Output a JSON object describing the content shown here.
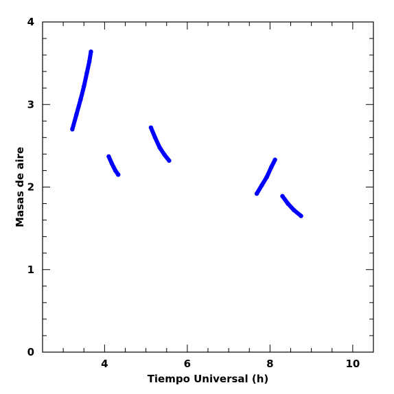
{
  "chart_data": {
    "type": "scatter",
    "title": "",
    "xlabel": "Tiempo Universal (h)",
    "ylabel": "Masas de aire",
    "xlim": [
      2.5,
      10.5
    ],
    "ylim": [
      0,
      4
    ],
    "x_ticks": [
      4,
      6,
      8,
      10
    ],
    "x_tick_labels": [
      "4",
      "6",
      "8",
      "10"
    ],
    "y_ticks": [
      0,
      1,
      2,
      3,
      4
    ],
    "y_tick_labels": [
      "0",
      "1",
      "2",
      "3",
      "4"
    ],
    "x_minor_step": 0.5,
    "y_minor_step": 0.2,
    "grid": false,
    "marker_color": "#0000ff",
    "series": [
      {
        "points": [
          [
            3.22,
            2.7
          ],
          [
            3.32,
            2.88
          ],
          [
            3.42,
            3.06
          ],
          [
            3.5,
            3.22
          ],
          [
            3.57,
            3.38
          ],
          [
            3.63,
            3.52
          ],
          [
            3.67,
            3.64
          ]
        ]
      },
      {
        "points": [
          [
            4.1,
            2.37
          ],
          [
            4.18,
            2.28
          ],
          [
            4.26,
            2.2
          ],
          [
            4.33,
            2.15
          ]
        ]
      },
      {
        "points": [
          [
            5.12,
            2.72
          ],
          [
            5.22,
            2.6
          ],
          [
            5.33,
            2.48
          ],
          [
            5.45,
            2.39
          ],
          [
            5.56,
            2.32
          ]
        ]
      },
      {
        "points": [
          [
            7.68,
            1.92
          ],
          [
            7.8,
            2.02
          ],
          [
            7.92,
            2.12
          ],
          [
            8.03,
            2.24
          ],
          [
            8.12,
            2.33
          ]
        ]
      },
      {
        "points": [
          [
            8.3,
            1.89
          ],
          [
            8.43,
            1.8
          ],
          [
            8.58,
            1.72
          ],
          [
            8.75,
            1.65
          ]
        ]
      }
    ]
  }
}
